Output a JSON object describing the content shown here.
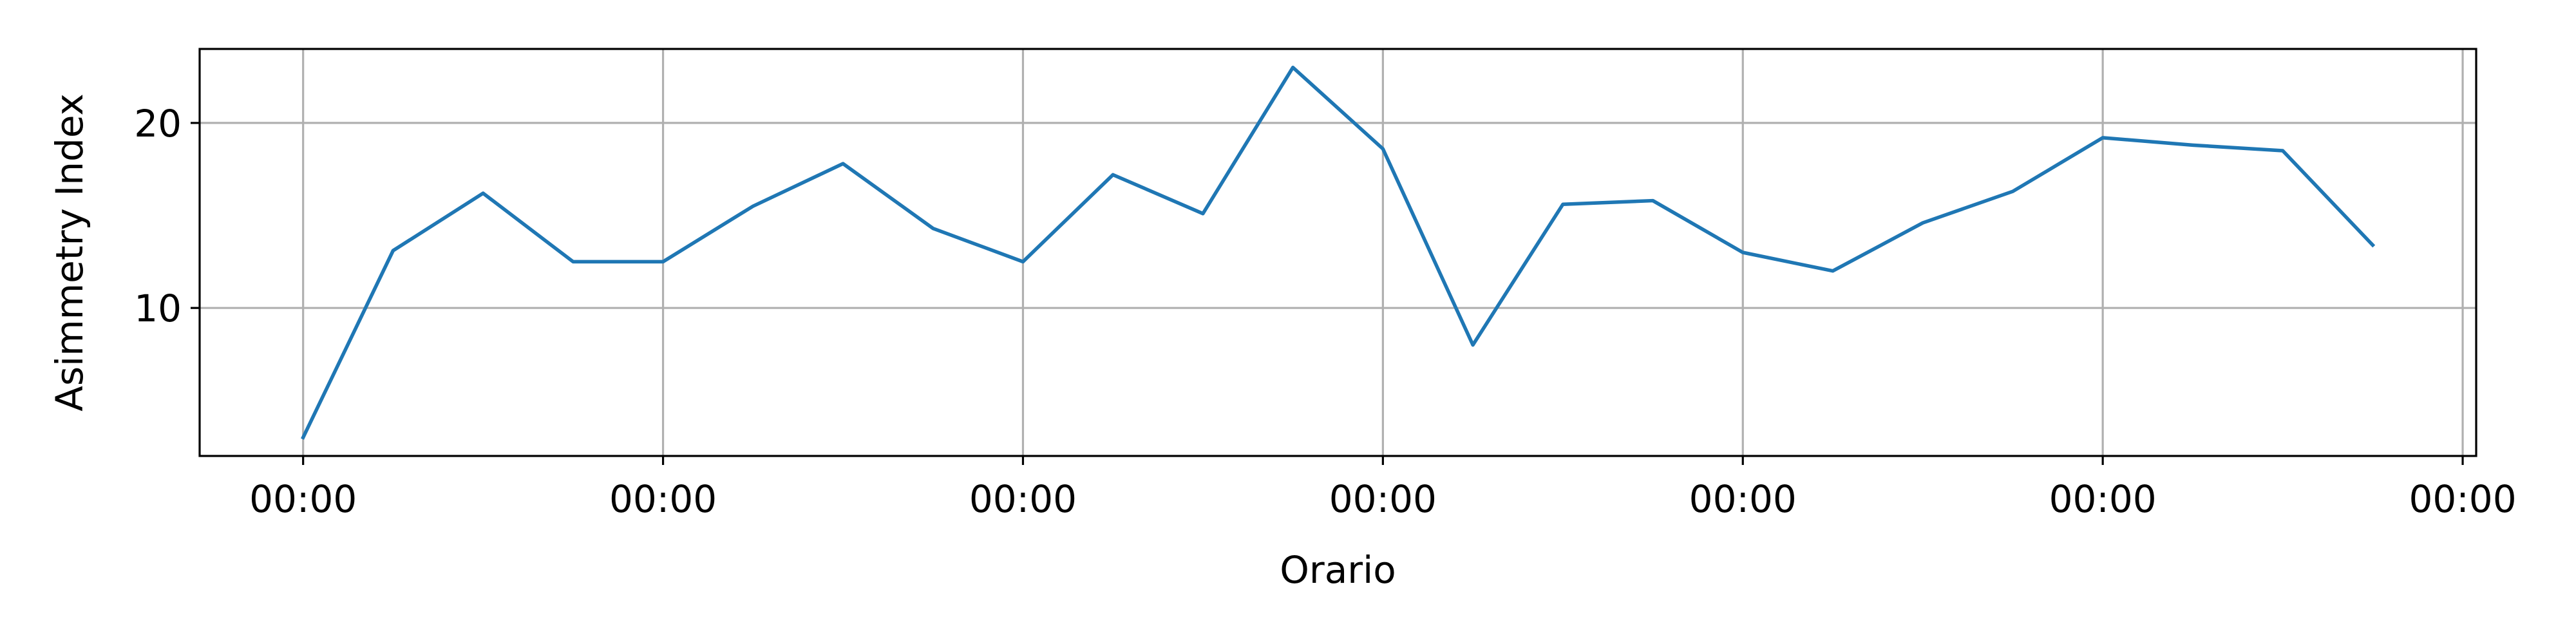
{
  "chart_data": {
    "type": "line",
    "xlabel": "Orario",
    "ylabel": "Asimmetry Index",
    "x": [
      0,
      1,
      2,
      3,
      4,
      5,
      6,
      7,
      8,
      9,
      10,
      11,
      12,
      13,
      14,
      15,
      16,
      17,
      18,
      19,
      20,
      21,
      22,
      23
    ],
    "x_ticks": [
      {
        "x": 0,
        "label": "00:00"
      },
      {
        "x": 4,
        "label": "00:00"
      },
      {
        "x": 8,
        "label": "00:00"
      },
      {
        "x": 12,
        "label": "00:00"
      },
      {
        "x": 16,
        "label": "00:00"
      },
      {
        "x": 20,
        "label": "00:00"
      },
      {
        "x": 24,
        "label": "00:00"
      }
    ],
    "y_ticks": [
      10,
      20
    ],
    "xlim": [
      -1.15,
      24.15
    ],
    "ylim": [
      2.0,
      24.0
    ],
    "grid": true,
    "series": [
      {
        "color": "#1f77b4",
        "values": [
          3.0,
          13.1,
          16.2,
          12.5,
          12.5,
          15.5,
          17.8,
          14.3,
          12.5,
          17.2,
          15.1,
          23.0,
          18.6,
          8.0,
          15.6,
          15.8,
          13.0,
          12.0,
          14.6,
          16.3,
          19.2,
          18.8,
          18.5,
          13.4
        ]
      }
    ]
  }
}
